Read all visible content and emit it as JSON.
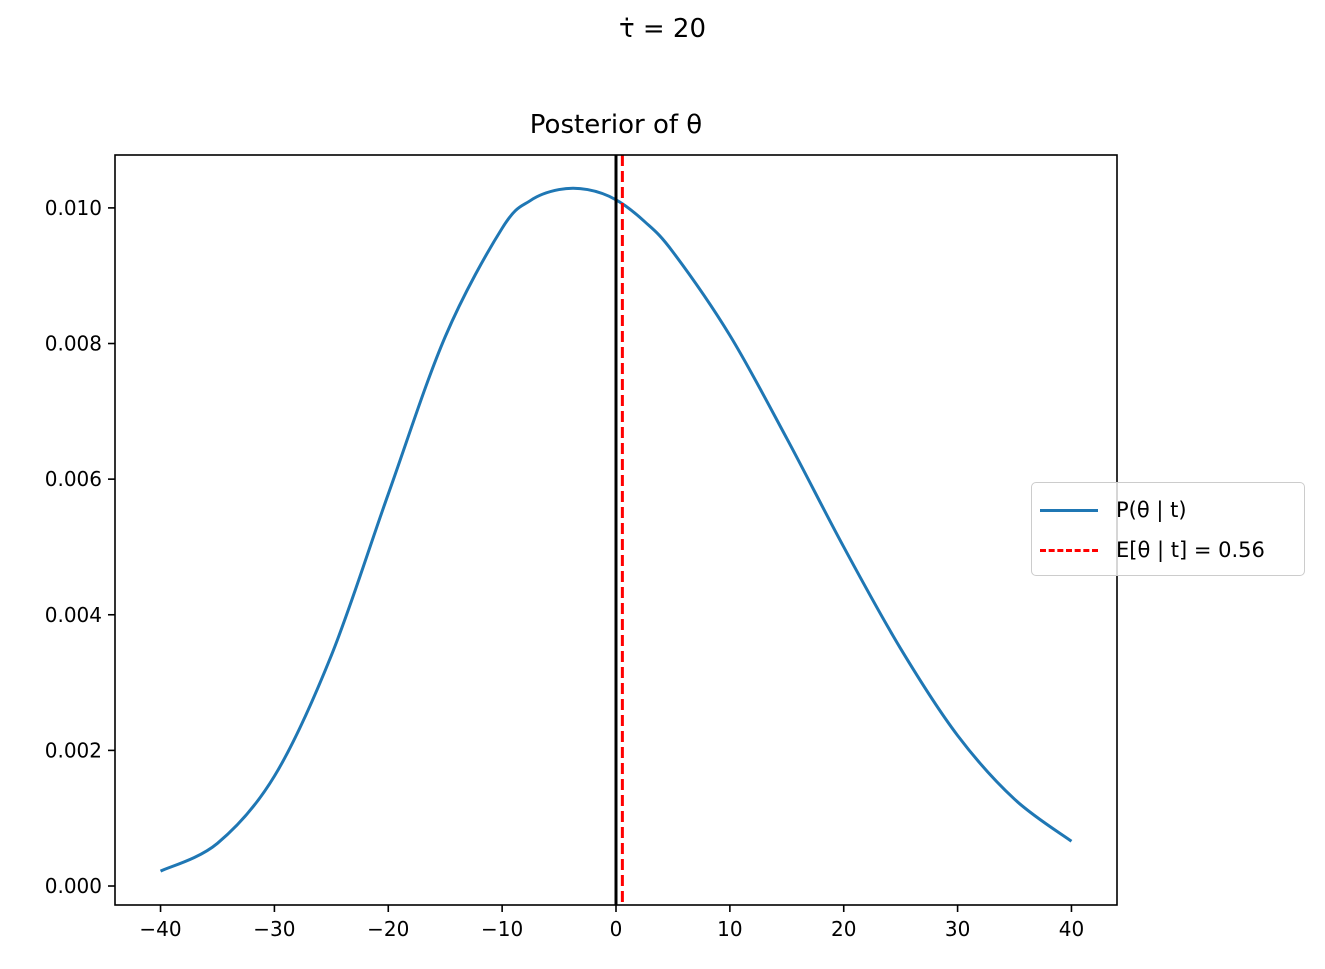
{
  "chart_data": {
    "type": "line",
    "suptitle": "τ̇ = 20",
    "title": "Posterior of θ",
    "xlabel": "",
    "ylabel": "",
    "xlim": [
      -44,
      44
    ],
    "ylim": [
      -0.00028,
      0.01078
    ],
    "xticks": [
      -40,
      -30,
      -20,
      -10,
      0,
      10,
      20,
      30,
      40
    ],
    "xtick_labels": [
      "−40",
      "−30",
      "−20",
      "−10",
      "0",
      "10",
      "20",
      "30",
      "40"
    ],
    "yticks": [
      0.0,
      0.002,
      0.004,
      0.006,
      0.008,
      0.01
    ],
    "ytick_labels": [
      "0.000",
      "0.002",
      "0.004",
      "0.006",
      "0.008",
      "0.010"
    ],
    "grid": false,
    "legend_position": "center-right",
    "series": [
      {
        "name": "P(θ | t)",
        "color": "#1f77b4",
        "style": "solid",
        "x": [
          -40,
          -35,
          -30,
          -25,
          -20,
          -15,
          -10,
          -7.5,
          -5,
          -2.5,
          0,
          2.5,
          5,
          10,
          15,
          20,
          25,
          30,
          35,
          40
        ],
        "y": [
          0.00022,
          0.00063,
          0.00162,
          0.0034,
          0.00578,
          0.0081,
          0.0097,
          0.01011,
          0.01027,
          0.01027,
          0.01012,
          0.0098,
          0.00935,
          0.00812,
          0.0066,
          0.005,
          0.0035,
          0.00222,
          0.00128,
          0.00066
        ]
      },
      {
        "name": "E[θ | t] = 0.56",
        "color": "#ff0000",
        "style": "dashed",
        "vline_x": 0.56
      }
    ],
    "reference_line": {
      "x": 0,
      "color": "#000000",
      "style": "solid"
    }
  },
  "legend": {
    "entries": [
      {
        "label": "P(θ | t)",
        "color": "#1f77b4",
        "style": "solid"
      },
      {
        "label": "E[θ | t] = 0.56",
        "color": "#ff0000",
        "style": "dashed"
      }
    ]
  }
}
